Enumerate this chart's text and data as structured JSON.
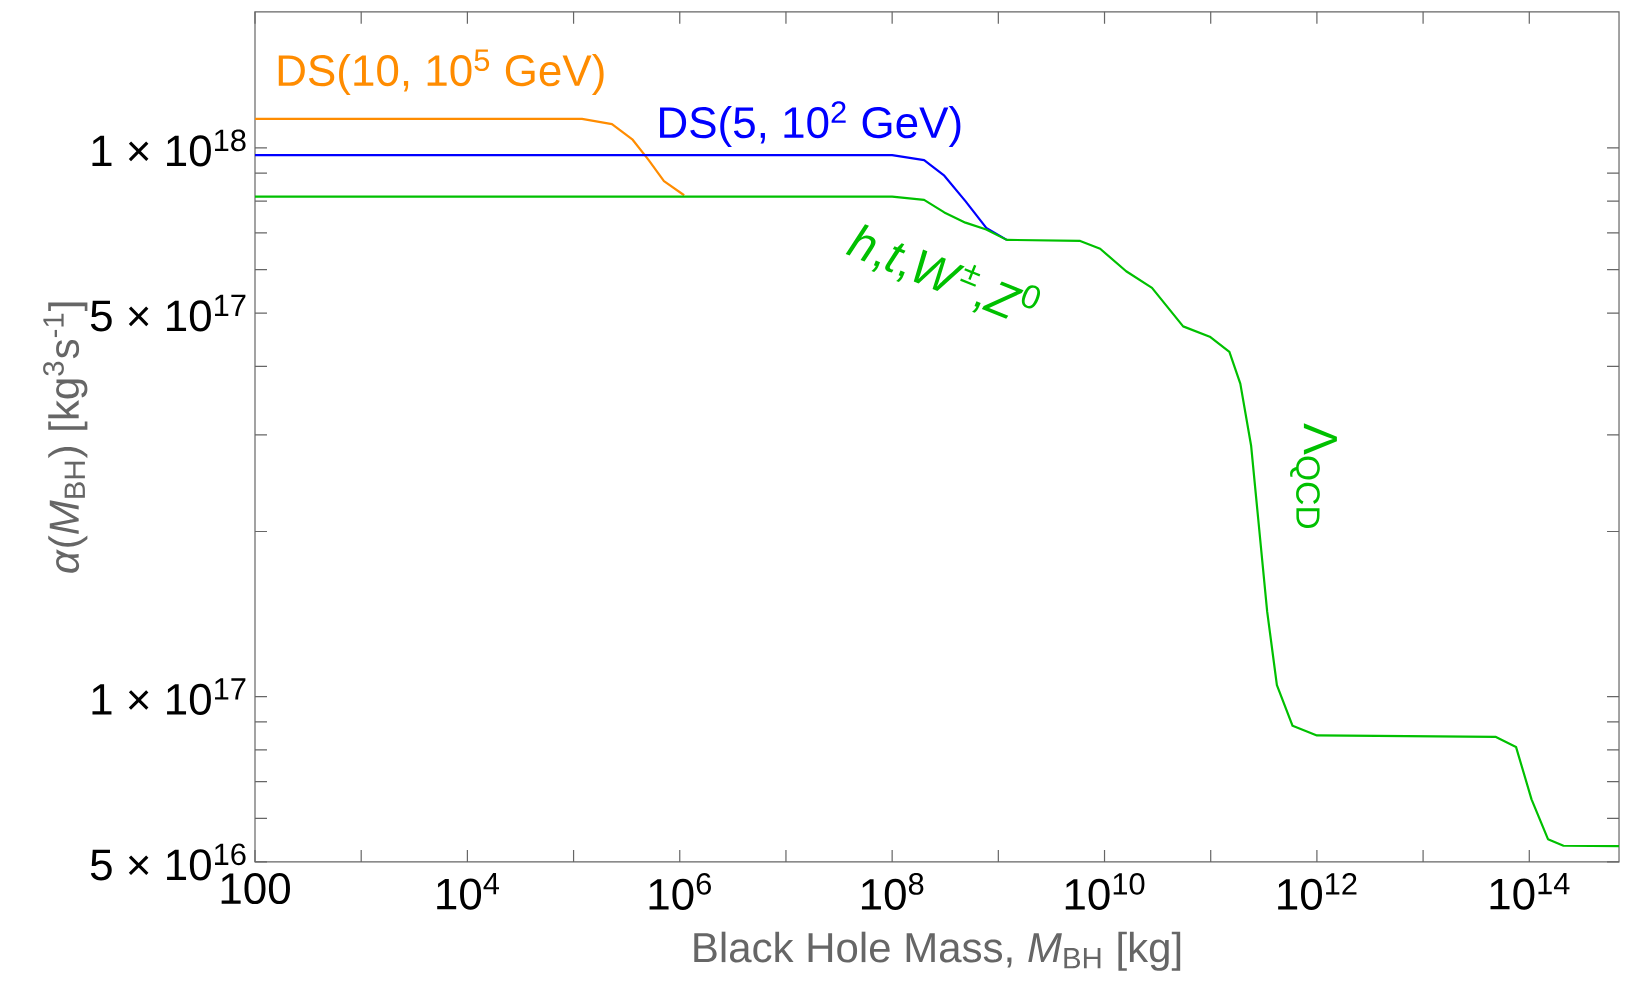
{
  "chart_data": {
    "type": "line",
    "xlabel": "Black Hole Mass, *M*$_{BH}$ [kg]",
    "ylabel": "*α*(*M*$_{BH}$) [kg$^{3}$s$^{-1}$]",
    "log": "xy",
    "xlim": [
      100,
      700000000000000.0
    ],
    "ylim": [
      5e+16,
      1.77e+18
    ],
    "xticks": [
      100,
      {
        "value": 1000,
        "label": null
      },
      {
        "value": 10000.0,
        "label": "10$^{4}$"
      },
      {
        "value": 100000.0,
        "label": null
      },
      {
        "value": 1000000.0,
        "label": "10$^{6}$"
      },
      {
        "value": 10000000.0,
        "label": null
      },
      {
        "value": 100000000.0,
        "label": "10$^{8}$"
      },
      {
        "value": 1000000000.0,
        "label": null
      },
      {
        "value": 10000000000.0,
        "label": "10$^{10}$"
      },
      {
        "value": 100000000000.0,
        "label": null
      },
      {
        "value": 1000000000000.0,
        "label": "10$^{12}$"
      },
      {
        "value": 10000000000000.0,
        "label": null
      },
      {
        "value": 100000000000000.0,
        "label": "10$^{14}$"
      }
    ],
    "yticks": [
      {
        "value": 5e+16,
        "label": "5 × 10$^{16}$"
      },
      {
        "value": 6e+16,
        "label": null
      },
      {
        "value": 7e+16,
        "label": null
      },
      {
        "value": 8e+16,
        "label": null
      },
      {
        "value": 9e+16,
        "label": null
      },
      {
        "value": 1e+17,
        "label": "1 × 10$^{17}$"
      },
      {
        "value": 2e+17,
        "label": null
      },
      {
        "value": 3e+17,
        "label": null
      },
      {
        "value": 4e+17,
        "label": null
      },
      {
        "value": 5e+17,
        "label": "5 × 10$^{17}$"
      },
      {
        "value": 6e+17,
        "label": null
      },
      {
        "value": 7e+17,
        "label": null
      },
      {
        "value": 8e+17,
        "label": null
      },
      {
        "value": 9e+17,
        "label": null
      },
      {
        "value": 1e+18,
        "label": "1 × 10$^{18}$"
      }
    ],
    "series": [
      {
        "name": "DS(10, 10$^{5}$ GeV)",
        "color": "#ff8c00",
        "x": [
          100,
          120000.0,
          230000.0,
          360000.0,
          510000.0,
          710000.0,
          1100000.0
        ],
        "values": [
          1.13e+18,
          1.13e+18,
          1.105e+18,
          1.035e+18,
          9.5e+17,
          8.7e+17,
          8.2e+17
        ]
      },
      {
        "name": "DS(5, 10$^{2}$ GeV)",
        "color": "#0000ff",
        "x": [
          100,
          100000000.0,
          200000000.0,
          310000000.0,
          490000000.0,
          770000000.0,
          1200000000.0
        ],
        "values": [
          9.7e+17,
          9.7e+17,
          9.5e+17,
          8.9e+17,
          8e+17,
          7.15e+17,
          6.8e+17
        ]
      },
      {
        "color": "#00c000",
        "x": [
          100,
          100000000.0,
          200000000.0,
          310000000.0,
          490000000.0,
          770000000.0,
          1200000000.0,
          5900000000.0,
          9100000000.0,
          16000000000.0,
          28000000000.0,
          55000000000.0,
          98000000000.0,
          150000000000.0,
          190000000000.0,
          240000000000.0,
          280000000000.0,
          340000000000.0,
          420000000000.0,
          590000000000.0,
          1000000000000.0,
          48000000000000.0,
          75000000000000.0,
          105000000000000.0,
          150000000000000.0,
          210000000000000.0,
          700000000000000.0
        ],
        "values": [
          8.15e+17,
          8.15e+17,
          8.04e+17,
          7.63e+17,
          7.31e+17,
          7.1e+17,
          6.8e+17,
          6.77e+17,
          6.55e+17,
          5.96e+17,
          5.56e+17,
          4.73e+17,
          4.53e+17,
          4.25e+17,
          3.72e+17,
          2.87e+17,
          2.11e+17,
          1.43e+17,
          1.05e+17,
          8.85e+16,
          8.5e+16,
          8.45e+16,
          8.1e+16,
          6.5e+16,
          5.5e+16,
          5.35e+16,
          5.34e+16
        ]
      }
    ],
    "annotations": [
      "*h*,*t*,*W*$^{±}$,*Z*$^{0}$",
      "Λ$_{QCD}$"
    ]
  }
}
